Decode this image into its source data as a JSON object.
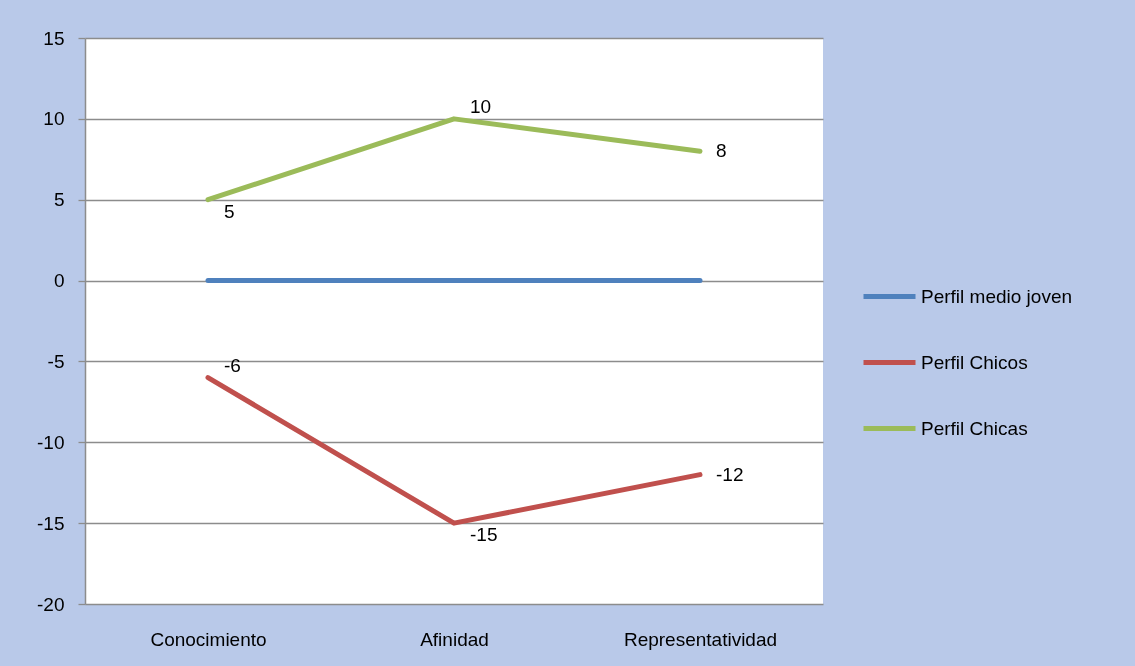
{
  "chart_data": {
    "type": "line",
    "categories": [
      "Conocimiento",
      "Afinidad",
      "Representatividad"
    ],
    "series": [
      {
        "name": "Perfil medio joven",
        "color": "#4f81bd",
        "values": [
          0,
          0,
          0
        ]
      },
      {
        "name": "Perfil Chicos",
        "color": "#c0504d",
        "values": [
          -6,
          -15,
          -12
        ],
        "value_labels": [
          "-6",
          "-15",
          "-12"
        ]
      },
      {
        "name": "Perfil Chicas",
        "color": "#9bbb59",
        "values": [
          5,
          10,
          8
        ],
        "value_labels": [
          "5",
          "10",
          "8"
        ]
      }
    ],
    "ylim": [
      -20,
      15
    ],
    "yticks": [
      -20,
      -15,
      -10,
      -5,
      0,
      5,
      10,
      15
    ],
    "grid": "y",
    "legend": "right"
  }
}
